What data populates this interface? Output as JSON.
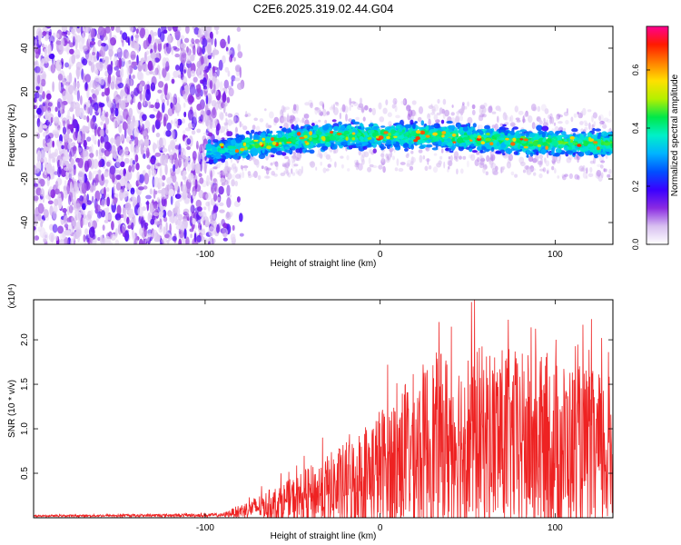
{
  "title": "C2E6.2025.319.02.44.G04",
  "chart_data": [
    {
      "type": "heatmap",
      "name": "spectrogram",
      "xlabel": "Height of straight line (km)",
      "ylabel": "Frequency (Hz)",
      "xlim": [
        -198,
        133
      ],
      "ylim": [
        -50,
        50
      ],
      "xticks": [
        -100,
        0,
        100
      ],
      "yticks": [
        -40,
        -20,
        0,
        20,
        40
      ],
      "colorbar": {
        "label": "Normalized spectral amplitude",
        "range": [
          0.0,
          0.75
        ],
        "ticks": [
          "0.0",
          "0.2",
          "0.4",
          "0.6"
        ],
        "tick_values": [
          0.0,
          0.2,
          0.4,
          0.6
        ],
        "colors": [
          "#ffffff",
          "#d8c0f0",
          "#8a2be2",
          "#3a00ff",
          "#0050ff",
          "#00b4ff",
          "#00f0c8",
          "#00e84a",
          "#b4f000",
          "#ffe000",
          "#ff8000",
          "#ff1a00",
          "#ff0090"
        ]
      },
      "band": {
        "center_hz": [
          {
            "x": -95,
            "y": -7
          },
          {
            "x": -50,
            "y": -2
          },
          {
            "x": -20,
            "y": 0
          },
          {
            "x": 30,
            "y": 0
          },
          {
            "x": 80,
            "y": -3
          },
          {
            "x": 133,
            "y": -4
          }
        ],
        "half_width_hz": 5,
        "noise_region_end_km": -85
      }
    },
    {
      "type": "line",
      "name": "snr",
      "xlabel": "Height of straight line (km)",
      "ylabel": "SNR (10 * v/v)",
      "yscale_label": "(x10⁴)",
      "xlim": [
        -198,
        133
      ],
      "ylim": [
        0,
        2.45
      ],
      "xticks": [
        -100,
        0,
        100
      ],
      "yticks": [
        0.5,
        1.0,
        1.5,
        2.0
      ],
      "ytick_labels": [
        "0.5",
        "1.0",
        "1.5",
        "2.0"
      ],
      "color": "#ee2222",
      "envelope": [
        {
          "x": -198,
          "mean": 0.02,
          "amp": 0.01
        },
        {
          "x": -90,
          "mean": 0.03,
          "amp": 0.02
        },
        {
          "x": -75,
          "mean": 0.1,
          "amp": 0.1
        },
        {
          "x": -50,
          "mean": 0.2,
          "amp": 0.25
        },
        {
          "x": -20,
          "mean": 0.35,
          "amp": 0.5
        },
        {
          "x": 0,
          "mean": 0.55,
          "amp": 0.7
        },
        {
          "x": 30,
          "mean": 0.85,
          "amp": 1.0
        },
        {
          "x": 60,
          "mean": 0.9,
          "amp": 1.05
        },
        {
          "x": 100,
          "mean": 0.8,
          "amp": 1.0
        },
        {
          "x": 133,
          "mean": 0.7,
          "amp": 0.9
        }
      ]
    }
  ]
}
